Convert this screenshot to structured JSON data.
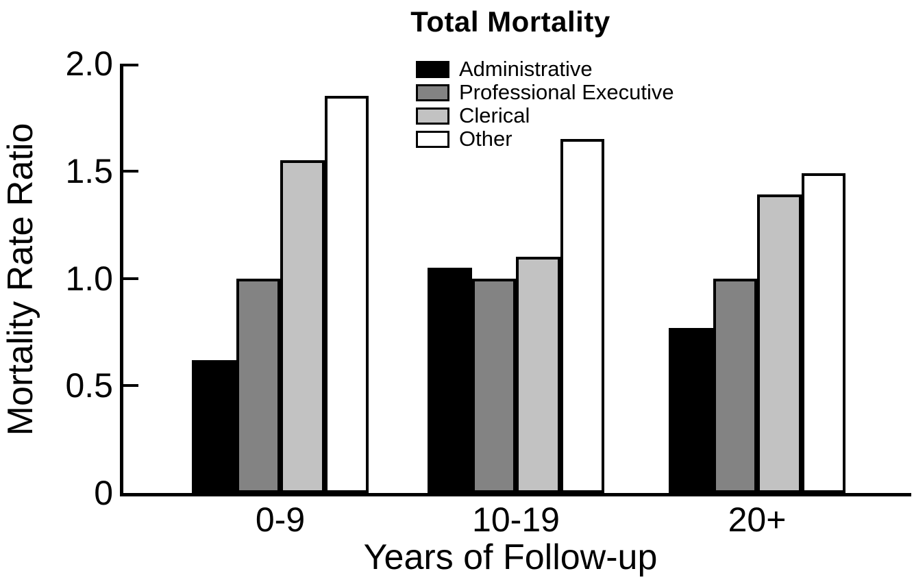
{
  "chart_data": {
    "type": "bar",
    "title": "Total Mortality",
    "xlabel": "Years of Follow-up",
    "ylabel": "Mortality Rate Ratio",
    "categories": [
      "0-9",
      "10-19",
      "20+"
    ],
    "series": [
      {
        "name": "Administrative",
        "color": "#000000",
        "values": [
          0.62,
          1.05,
          0.77
        ]
      },
      {
        "name": "Professional Executive",
        "color": "#838383",
        "values": [
          1.0,
          1.0,
          1.0
        ]
      },
      {
        "name": "Clerical",
        "color": "#c2c2c2",
        "values": [
          1.55,
          1.1,
          1.39
        ]
      },
      {
        "name": "Other",
        "color": "#ffffff",
        "values": [
          1.85,
          1.65,
          1.49
        ]
      }
    ],
    "ylim": [
      0,
      2.0
    ],
    "yticks": [
      0,
      0.5,
      1.0,
      1.5,
      2.0
    ],
    "ytick_labels": [
      "0",
      "0.5",
      "1.0",
      "1.5",
      "2.0"
    ],
    "grid": false,
    "legend_position": "top-center-inside",
    "bar_outline_color": "#000000",
    "axis_color": "#000000",
    "background_color": "#ffffff"
  }
}
